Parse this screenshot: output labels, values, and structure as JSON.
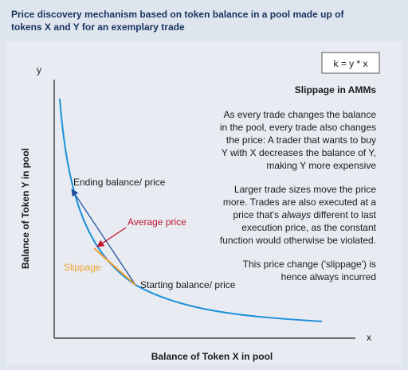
{
  "header": {
    "title_lines": [
      "Price discovery mechanism based on token balance in a pool made up of",
      "tokens X and Y for an exemplary trade"
    ]
  },
  "formula": "k = y * x",
  "axes": {
    "y": "y",
    "x": "x",
    "y_label": "Balance of Token Y in pool",
    "x_label": "Balance of Token X in pool"
  },
  "annotations": {
    "ending": "Ending balance/ price",
    "average": "Average price",
    "slippage": "Slippage",
    "starting": "Starting balance/ price"
  },
  "notes": {
    "heading": "Slippage in AMMs",
    "paragraph_1": [
      "As every trade changes the balance",
      "in the pool, every trade also changes",
      "the price: A trader that wants to buy",
      "Y with X decreases the balance of Y,",
      "making Y more expensive"
    ],
    "paragraph_2": [
      "Larger trade sizes move the price",
      "more. Trades are also executed at a"
    ],
    "paragraph_2_mixed": {
      "before": "price that's ",
      "italic": "always",
      "after": " different to last"
    },
    "paragraph_2_rest": [
      "execution price, as the constant",
      "function would otherwise be violated."
    ],
    "paragraph_3": [
      "This price change ('slippage') is",
      "hence always incurred"
    ]
  }
}
